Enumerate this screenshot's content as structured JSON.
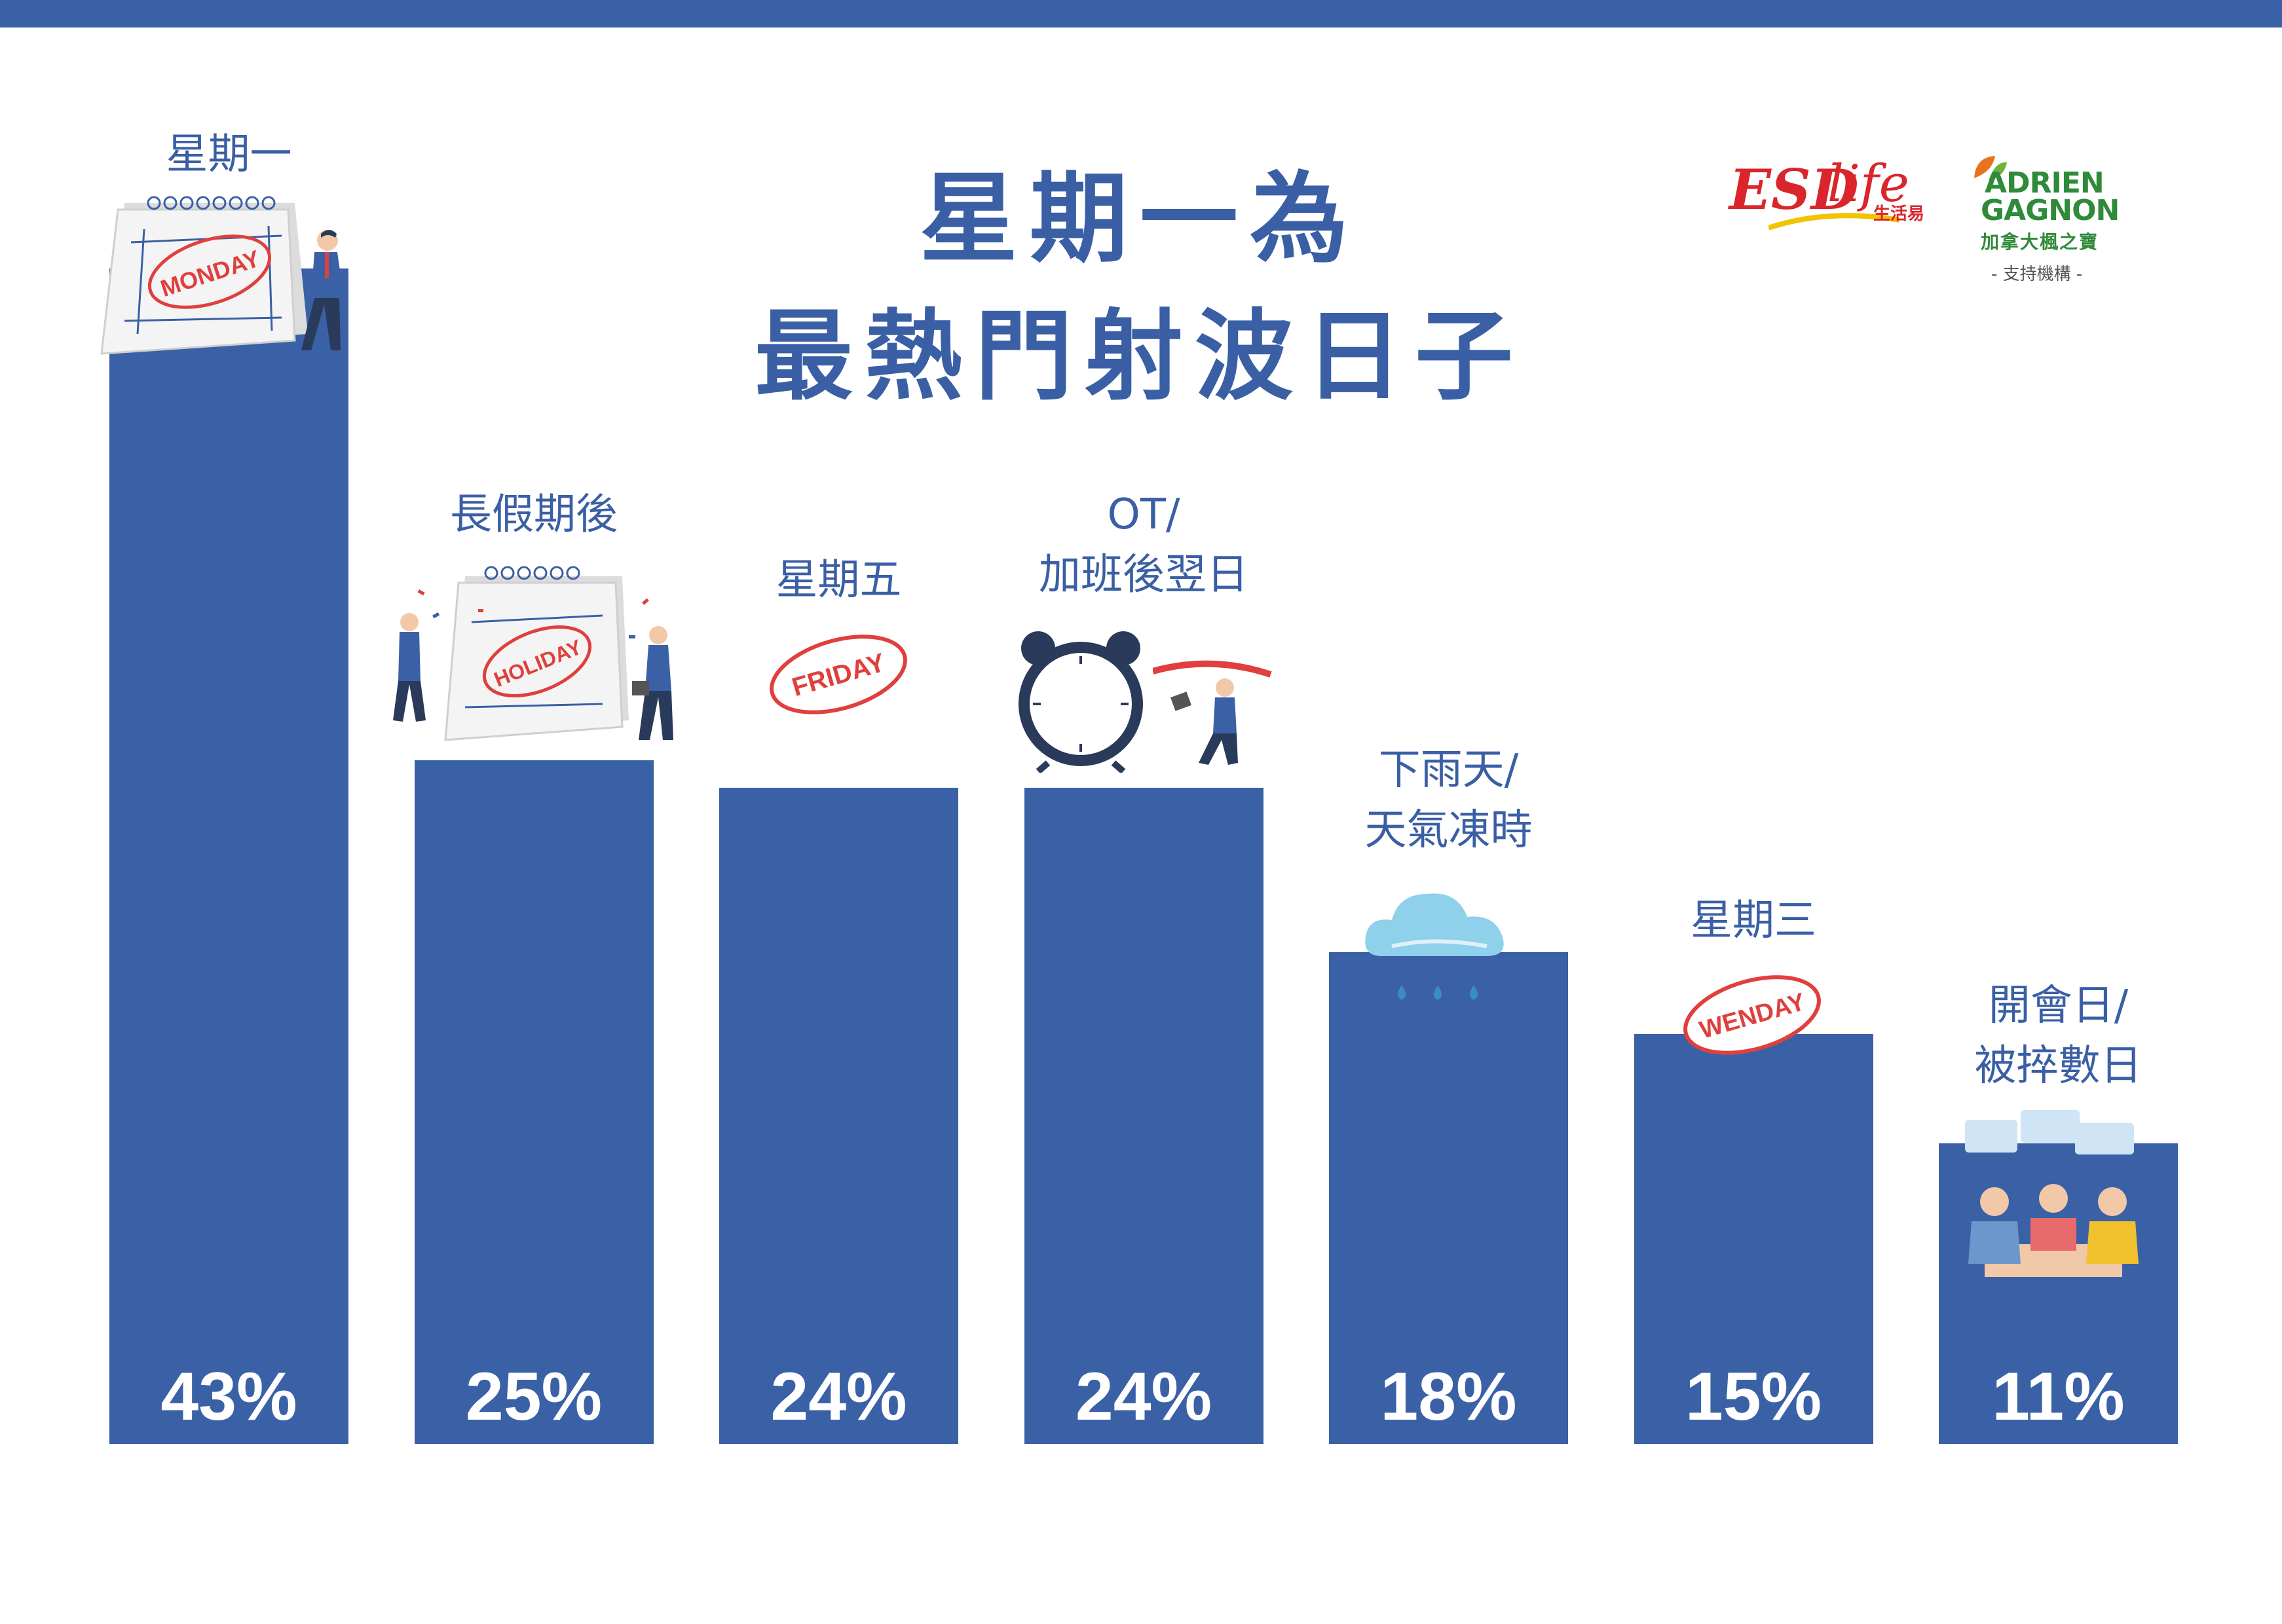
{
  "title": {
    "line1": "星期一為",
    "line2": "最熱門射波日子"
  },
  "logos": {
    "esdlife": {
      "esd": "ESD",
      "life": "life",
      "chinese": "生活易"
    },
    "adrien_gagnon": {
      "line1": "ADRIEN",
      "line2": "GAGNON",
      "chinese": "加拿大楓之寶",
      "support": "- 支持機構 -"
    }
  },
  "colors": {
    "bar": "#3a61a6",
    "text": "#3a5fa5",
    "stamp": "#e0403d"
  },
  "icons": [
    "calendar-icon",
    "businessman-icon",
    "holiday-calendar-icon",
    "stamp-icon",
    "alarm-clock-icon",
    "running-woman-icon",
    "rain-cloud-icon",
    "meeting-people-icon"
  ],
  "stamps": {
    "monday": "MONDAY",
    "holiday": "HOLIDAY",
    "friday": "FRIDAY",
    "wenday": "WENDAY"
  },
  "chart_data": {
    "type": "bar",
    "title": "星期一為最熱門射波日子",
    "categories": [
      "星期一",
      "長假期後",
      "星期五",
      "OT/\n加班後翌日",
      "下雨天/\n天氣凍時",
      "星期三",
      "開會日/\n被捽數日"
    ],
    "values": [
      43,
      25,
      24,
      24,
      18,
      15,
      11
    ],
    "value_labels": [
      "43%",
      "25%",
      "24%",
      "24%",
      "18%",
      "15%",
      "11%"
    ],
    "unit": "%",
    "ylim": [
      0,
      43
    ],
    "grid": false,
    "legend": "none"
  }
}
